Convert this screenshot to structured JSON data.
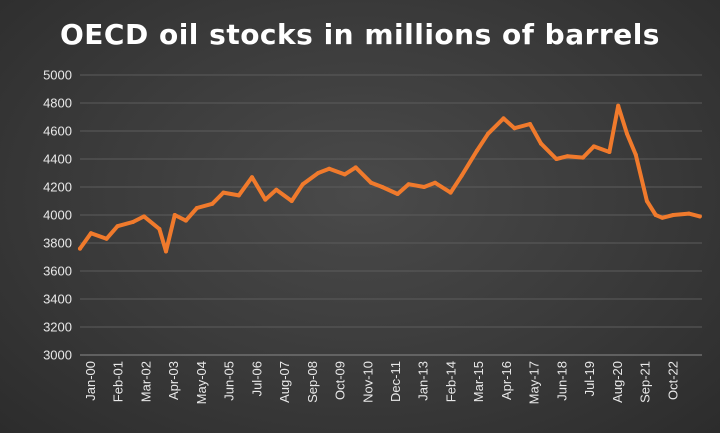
{
  "chart_data": {
    "type": "line",
    "title": "OECD oil stocks in millions of barrels",
    "xlabel": "",
    "ylabel": "",
    "ylim": [
      3000,
      5000
    ],
    "yticks": [
      "5000",
      "4800",
      "4600",
      "4400",
      "4200",
      "4000",
      "3800",
      "3600",
      "3400",
      "3200",
      "3000"
    ],
    "grid": true,
    "xticks": [
      "Jan-00",
      "Feb-01",
      "Mar-02",
      "Apr-03",
      "May-04",
      "Jun-05",
      "Jul-06",
      "Aug-07",
      "Sep-08",
      "Oct-09",
      "Nov-10",
      "Dec-11",
      "Jan-13",
      "Feb-14",
      "Mar-15",
      "Apr-16",
      "May-17",
      "Jun-18",
      "Jul-19",
      "Aug-20",
      "Sep-21",
      "Oct-22"
    ],
    "series": [
      {
        "color": "#f07a2c",
        "x": [
          "2000-01",
          "2000-06",
          "2001-01",
          "2001-06",
          "2002-01",
          "2002-06",
          "2003-01",
          "2003-04",
          "2003-08",
          "2004-01",
          "2004-06",
          "2005-01",
          "2005-06",
          "2006-01",
          "2006-07",
          "2007-01",
          "2007-06",
          "2008-01",
          "2008-06",
          "2009-01",
          "2009-06",
          "2010-01",
          "2010-06",
          "2011-01",
          "2011-06",
          "2012-01",
          "2012-06",
          "2013-01",
          "2013-06",
          "2014-01",
          "2014-06",
          "2015-01",
          "2015-06",
          "2016-01",
          "2016-06",
          "2017-01",
          "2017-06",
          "2018-01",
          "2018-06",
          "2019-01",
          "2019-06",
          "2020-01",
          "2020-05",
          "2020-09",
          "2021-01",
          "2021-06",
          "2021-10",
          "2022-01",
          "2022-06",
          "2023-01",
          "2023-06"
        ],
        "y": [
          3760,
          3870,
          3830,
          3920,
          3950,
          3990,
          3900,
          3740,
          4000,
          3960,
          4050,
          4080,
          4160,
          4140,
          4270,
          4110,
          4180,
          4100,
          4220,
          4300,
          4330,
          4290,
          4340,
          4230,
          4200,
          4150,
          4220,
          4200,
          4230,
          4160,
          4280,
          4460,
          4580,
          4690,
          4620,
          4650,
          4510,
          4400,
          4420,
          4410,
          4490,
          4450,
          4780,
          4580,
          4430,
          4100,
          4000,
          3980,
          4000,
          4010,
          3990
        ]
      }
    ]
  }
}
